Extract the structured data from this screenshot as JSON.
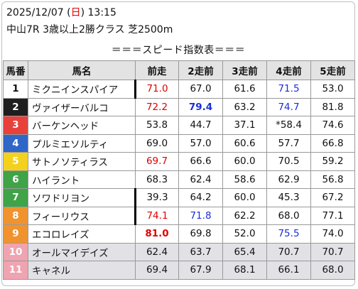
{
  "header": {
    "date_prefix": "2025/12/07 (",
    "weekday": "日",
    "date_suffix": ") 13:15",
    "race": "中山7R 3歳以上2勝クラス 芝2500m"
  },
  "banner": "＝＝＝スピード指数表＝＝＝",
  "columns": [
    "馬番",
    "馬名",
    "前走",
    "2走前",
    "3走前",
    "4走前",
    "5走前"
  ],
  "colors": {
    "red_value": "#e00000",
    "blue_value": "#1a2ed8"
  },
  "rows": [
    {
      "num": "1",
      "bg": "#ffffff",
      "fg": "#111111",
      "name": "ミクニインスパイア",
      "bar": true,
      "gray": false,
      "vals": [
        {
          "v": "71.0",
          "c": "red"
        },
        {
          "v": "67.0"
        },
        {
          "v": "61.6"
        },
        {
          "v": "71.5",
          "c": "blue"
        },
        {
          "v": "53.0"
        }
      ]
    },
    {
      "num": "2",
      "bg": "#1e1e1e",
      "fg": "#ffffff",
      "name": "ヴァイザーバルコ",
      "bar": false,
      "gray": false,
      "vals": [
        {
          "v": "72.2",
          "c": "red"
        },
        {
          "v": "79.4",
          "c": "blue",
          "b": true
        },
        {
          "v": "63.2"
        },
        {
          "v": "74.7",
          "c": "blue"
        },
        {
          "v": "81.8"
        }
      ]
    },
    {
      "num": "3",
      "bg": "#e8413c",
      "fg": "#ffffff",
      "name": "バーケンヘッド",
      "bar": false,
      "gray": false,
      "vals": [
        {
          "v": "53.8"
        },
        {
          "v": "44.7"
        },
        {
          "v": "37.1"
        },
        {
          "v": "*58.4"
        },
        {
          "v": "74.6"
        }
      ]
    },
    {
      "num": "4",
      "bg": "#2f66c8",
      "fg": "#ffffff",
      "name": "プルミエソルティ",
      "bar": false,
      "gray": false,
      "vals": [
        {
          "v": "69.0"
        },
        {
          "v": "57.0"
        },
        {
          "v": "60.6"
        },
        {
          "v": "57.7"
        },
        {
          "v": "66.8"
        }
      ]
    },
    {
      "num": "5",
      "bg": "#f2d21e",
      "fg": "#ffffff",
      "name": "サトノソティラス",
      "bar": false,
      "gray": false,
      "vals": [
        {
          "v": "69.7",
          "c": "red"
        },
        {
          "v": "66.6"
        },
        {
          "v": "60.0"
        },
        {
          "v": "70.5"
        },
        {
          "v": "59.2"
        }
      ]
    },
    {
      "num": "6",
      "bg": "#3fa347",
      "fg": "#ffffff",
      "name": "ハイラント",
      "bar": false,
      "gray": false,
      "vals": [
        {
          "v": "68.3"
        },
        {
          "v": "62.4"
        },
        {
          "v": "58.6"
        },
        {
          "v": "62.9"
        },
        {
          "v": "56.8"
        }
      ]
    },
    {
      "num": "7",
      "bg": "#3fa347",
      "fg": "#ffffff",
      "name": "ソワドリヨン",
      "bar": true,
      "gray": false,
      "vals": [
        {
          "v": "39.3"
        },
        {
          "v": "64.2"
        },
        {
          "v": "60.0"
        },
        {
          "v": "45.3"
        },
        {
          "v": "67.2"
        }
      ]
    },
    {
      "num": "8",
      "bg": "#f0932f",
      "fg": "#ffffff",
      "name": "フィーリウス",
      "bar": true,
      "gray": false,
      "vals": [
        {
          "v": "74.1",
          "c": "red"
        },
        {
          "v": "71.8",
          "c": "blue"
        },
        {
          "v": "62.2"
        },
        {
          "v": "68.0"
        },
        {
          "v": "77.1"
        }
      ]
    },
    {
      "num": "9",
      "bg": "#f0932f",
      "fg": "#ffffff",
      "name": "エコロレイズ",
      "bar": false,
      "gray": false,
      "vals": [
        {
          "v": "81.0",
          "c": "red",
          "b": true
        },
        {
          "v": "69.8"
        },
        {
          "v": "52.0"
        },
        {
          "v": "75.5",
          "c": "blue"
        },
        {
          "v": "74.0"
        }
      ]
    },
    {
      "num": "10",
      "bg": "#f0a3b0",
      "fg": "#ffffff",
      "name": "オールマイデイズ",
      "bar": false,
      "gray": true,
      "vals": [
        {
          "v": "62.4"
        },
        {
          "v": "63.7"
        },
        {
          "v": "65.4"
        },
        {
          "v": "70.7"
        },
        {
          "v": "70.7"
        }
      ]
    },
    {
      "num": "11",
      "bg": "#f0a3b0",
      "fg": "#ffffff",
      "name": "キャネル",
      "bar": false,
      "gray": true,
      "vals": [
        {
          "v": "69.4"
        },
        {
          "v": "67.9"
        },
        {
          "v": "68.1"
        },
        {
          "v": "66.1"
        },
        {
          "v": "68.0"
        }
      ]
    }
  ]
}
